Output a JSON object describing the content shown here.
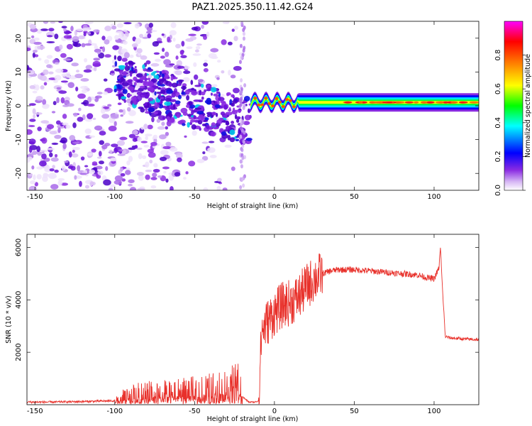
{
  "title": "PAZ1.2025.350.11.42.G24",
  "chart_data": [
    {
      "type": "heatmap",
      "xlabel": "Height of straight line (km)",
      "ylabel": "Frequency (Hz)",
      "xlim": [
        -155,
        128
      ],
      "ylim": [
        -25,
        25
      ],
      "xticks": [
        -150,
        -100,
        -50,
        0,
        50,
        100
      ],
      "yticks": [
        -20,
        -10,
        0,
        10,
        20
      ],
      "colorbar": {
        "label": "Normalized spectral amplitude",
        "ticks": [
          "0.0",
          "0.2",
          "0.4",
          "0.6",
          "0.8"
        ],
        "tick_values": [
          0.0,
          0.2,
          0.4,
          0.6,
          0.8
        ],
        "range": [
          0,
          1
        ],
        "colormap": [
          "#ffffff",
          "#8a2be2",
          "#0000ff",
          "#00ffff",
          "#00ff00",
          "#ffff00",
          "#ff8000",
          "#ff0000",
          "#ff00ff"
        ]
      },
      "regions": [
        {
          "name": "noise",
          "x_range": [
            -155,
            -20
          ],
          "y_range": [
            -25,
            25
          ],
          "amplitude": 0.1
        },
        {
          "name": "scattered-signal",
          "x_range": [
            -100,
            -15
          ],
          "center_start_hz": 8,
          "center_end_hz": -5,
          "amplitude": 0.2
        },
        {
          "name": "tracked-signal",
          "x_range": [
            -15,
            128
          ],
          "center_hz": 1,
          "amplitude": 0.55
        }
      ]
    },
    {
      "type": "line",
      "xlabel": "Height of straight line (km)",
      "ylabel": "SNR (10 * v/v)",
      "xlim": [
        -155,
        128
      ],
      "ylim": [
        0,
        6500
      ],
      "xticks": [
        -150,
        -100,
        -50,
        0,
        50,
        100
      ],
      "yticks": [
        2000,
        4000,
        6000
      ],
      "series": [
        {
          "name": "SNR",
          "color": "#e8302a",
          "x": [
            -155,
            -140,
            -120,
            -100,
            -95,
            -85,
            -75,
            -65,
            -55,
            -45,
            -35,
            -30,
            -25,
            -22,
            -20,
            -16,
            -12,
            -10,
            -8,
            -5,
            0,
            5,
            10,
            15,
            20,
            25,
            30,
            35,
            40,
            50,
            60,
            70,
            80,
            90,
            95,
            100,
            103,
            104,
            105,
            107,
            110,
            120,
            128
          ],
          "values": [
            100,
            100,
            120,
            150,
            300,
            450,
            500,
            500,
            550,
            600,
            700,
            800,
            900,
            850,
            300,
            100,
            100,
            150,
            2800,
            3100,
            3500,
            3800,
            3900,
            4100,
            4500,
            4800,
            5000,
            5100,
            5150,
            5150,
            5100,
            5050,
            5000,
            4950,
            4850,
            4800,
            5200,
            6000,
            4700,
            2600,
            2550,
            2500,
            2480
          ]
        }
      ]
    }
  ]
}
